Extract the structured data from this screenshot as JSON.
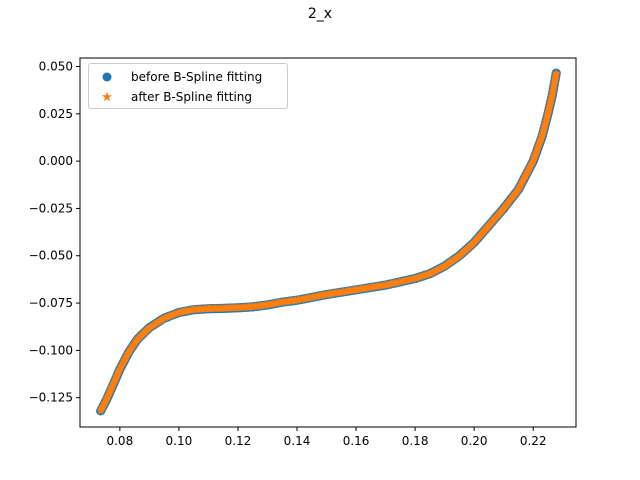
{
  "figure": {
    "title": "2_x"
  },
  "chart_data": {
    "type": "line",
    "title": "2_x",
    "xlabel": "",
    "ylabel": "",
    "xlim": [
      0.0665,
      0.2345
    ],
    "ylim": [
      -0.1405,
      0.0545
    ],
    "x_ticks": [
      "0.08",
      "0.10",
      "0.12",
      "0.14",
      "0.16",
      "0.18",
      "0.20",
      "0.22"
    ],
    "x_tick_values": [
      0.08,
      0.1,
      0.12,
      0.14,
      0.16,
      0.18,
      0.2,
      0.22
    ],
    "y_ticks": [
      "0.050",
      "0.025",
      "0.000",
      "−0.025",
      "−0.050",
      "−0.075",
      "−0.100",
      "−0.125"
    ],
    "y_tick_values": [
      0.05,
      0.025,
      0.0,
      -0.025,
      -0.05,
      -0.075,
      -0.1,
      -0.125
    ],
    "grid": false,
    "legend_position": "top-left",
    "series": [
      {
        "name": "before B-Spline fitting",
        "marker": "circle",
        "color": "#1f77b4",
        "x": [
          0.0735,
          0.0755,
          0.0775,
          0.08,
          0.083,
          0.086,
          0.09,
          0.095,
          0.1,
          0.105,
          0.11,
          0.115,
          0.12,
          0.125,
          0.13,
          0.135,
          0.14,
          0.15,
          0.16,
          0.17,
          0.18,
          0.185,
          0.19,
          0.195,
          0.2,
          0.205,
          0.21,
          0.215,
          0.22,
          0.223,
          0.225,
          0.2265,
          0.2278
        ],
        "y": [
          -0.132,
          -0.126,
          -0.119,
          -0.11,
          -0.101,
          -0.094,
          -0.088,
          -0.083,
          -0.08,
          -0.0785,
          -0.078,
          -0.0778,
          -0.0775,
          -0.077,
          -0.076,
          -0.0745,
          -0.0735,
          -0.0705,
          -0.068,
          -0.0655,
          -0.062,
          -0.0595,
          -0.0555,
          -0.05,
          -0.043,
          -0.034,
          -0.025,
          -0.015,
          0.0,
          0.013,
          0.025,
          0.035,
          0.0465
        ]
      },
      {
        "name": "after B-Spline fitting",
        "marker": "star",
        "color": "#ff7f0e",
        "x": [
          0.0735,
          0.0755,
          0.0775,
          0.08,
          0.083,
          0.086,
          0.09,
          0.095,
          0.1,
          0.105,
          0.11,
          0.115,
          0.12,
          0.125,
          0.13,
          0.135,
          0.14,
          0.15,
          0.16,
          0.17,
          0.18,
          0.185,
          0.19,
          0.195,
          0.2,
          0.205,
          0.21,
          0.215,
          0.22,
          0.223,
          0.225,
          0.2265,
          0.2278
        ],
        "y": [
          -0.132,
          -0.126,
          -0.119,
          -0.11,
          -0.101,
          -0.094,
          -0.088,
          -0.083,
          -0.08,
          -0.0785,
          -0.078,
          -0.0778,
          -0.0775,
          -0.077,
          -0.076,
          -0.0745,
          -0.0735,
          -0.0705,
          -0.068,
          -0.0655,
          -0.062,
          -0.0595,
          -0.0555,
          -0.05,
          -0.043,
          -0.034,
          -0.025,
          -0.015,
          0.0,
          0.013,
          0.025,
          0.035,
          0.0465
        ]
      }
    ]
  }
}
